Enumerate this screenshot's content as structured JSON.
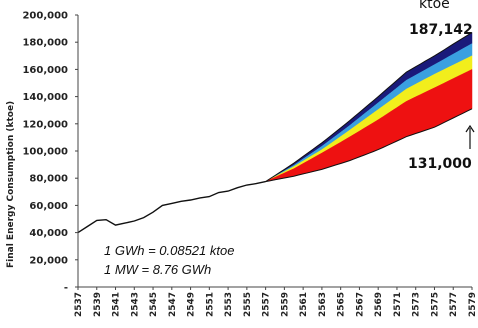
{
  "chart_data": {
    "type": "area",
    "ylabel": "Final Energy Consumption (ktoe)",
    "ylim": [
      0,
      200000
    ],
    "yticks": [
      "-",
      "20,000",
      "40,000",
      "60,000",
      "80,000",
      "100,000",
      "120,000",
      "140,000",
      "160,000",
      "180,000",
      "200,000"
    ],
    "xticks": [
      "2537",
      "2539",
      "2541",
      "2543",
      "2545",
      "2547",
      "2549",
      "2551",
      "2553",
      "2555",
      "2557",
      "2559",
      "2561",
      "2563",
      "2565",
      "2567",
      "2569",
      "2571",
      "2573",
      "2575",
      "2577",
      "2579"
    ],
    "historical": {
      "x": [
        2537,
        2538,
        2539,
        2540,
        2541,
        2542,
        2543,
        2544,
        2545,
        2546,
        2547,
        2548,
        2549,
        2550,
        2551,
        2552,
        2553,
        2554,
        2555,
        2556,
        2557
      ],
      "y": [
        40000,
        44500,
        49000,
        49500,
        45500,
        47000,
        48500,
        51000,
        55000,
        60000,
        61500,
        63000,
        64000,
        65500,
        66500,
        69500,
        70500,
        73000,
        75000,
        76000,
        77500
      ]
    },
    "projection": {
      "x": [
        2557,
        2560,
        2563,
        2566,
        2569,
        2572,
        2575,
        2579
      ],
      "series": [
        {
          "name": "",
          "color": "#1a1a7a",
          "values": [
            77500,
            91000,
            106000,
            122500,
            140000,
            158000,
            170000,
            187142
          ]
        },
        {
          "name": "",
          "color": "#3aa0e0",
          "values": [
            77500,
            89500,
            103500,
            119000,
            135500,
            152000,
            163500,
            179000
          ]
        },
        {
          "name": "",
          "color": "#f2ee1c",
          "values": [
            77500,
            88500,
            101000,
            115500,
            130500,
            145500,
            156500,
            170000
          ]
        },
        {
          "name": "",
          "color": "#ee1111",
          "values": [
            77500,
            87000,
            98500,
            110500,
            123000,
            136500,
            146500,
            160000
          ]
        },
        {
          "name": "",
          "color": "#ee1111",
          "values": [
            77500,
            81500,
            86500,
            93000,
            101000,
            110500,
            117500,
            131000
          ]
        }
      ]
    },
    "unit_label": "ktoe",
    "high_value_label": "187,142",
    "low_value_label": "131,000",
    "note_line1": "1 GWh = 0.08521  ktoe",
    "note_line2": "1 MW  =  8.76  GWh",
    "grid": false
  }
}
